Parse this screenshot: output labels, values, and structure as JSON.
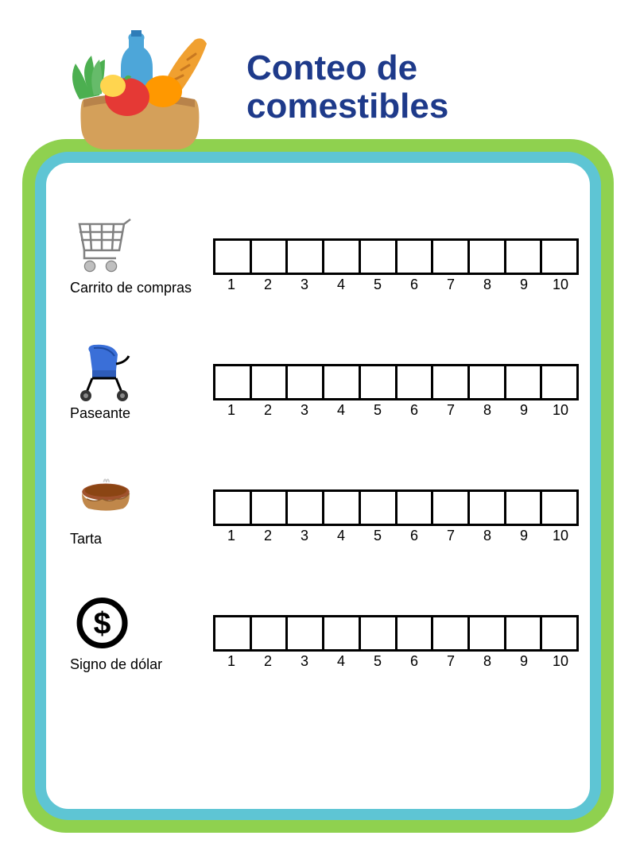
{
  "title": "Conteo de comestibles",
  "colors": {
    "title_color": "#1e3a8a",
    "outer_border": "#8fd14f",
    "inner_border": "#5ec5d4",
    "background": "#ffffff",
    "box_border": "#000000",
    "text": "#000000"
  },
  "box_count": 10,
  "numbers": [
    "1",
    "2",
    "3",
    "4",
    "5",
    "6",
    "7",
    "8",
    "9",
    "10"
  ],
  "items": [
    {
      "icon": "shopping-cart",
      "label": "Carrito de compras"
    },
    {
      "icon": "stroller",
      "label": "Paseante"
    },
    {
      "icon": "pie",
      "label": "Tarta"
    },
    {
      "icon": "dollar-sign",
      "label": "Signo de dólar"
    }
  ]
}
